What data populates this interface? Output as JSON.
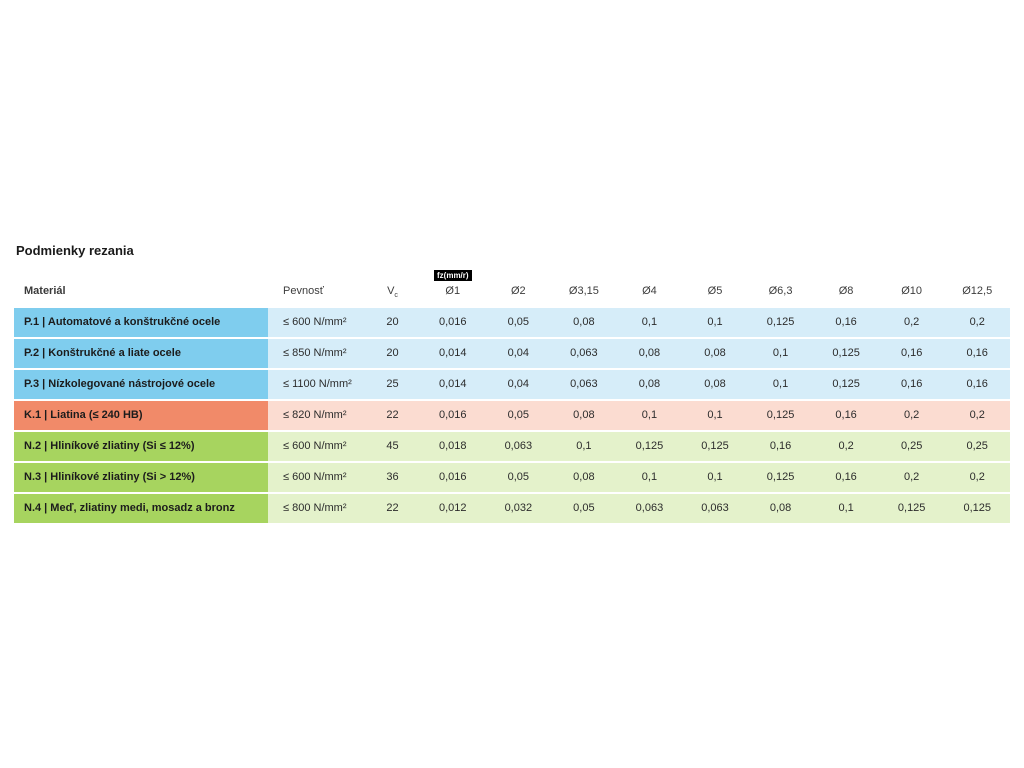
{
  "title": "Podmienky rezania",
  "columns": {
    "material": "Materiál",
    "pevnost": "Pevnosť",
    "vc_main": "V",
    "vc_sub": "c",
    "fz_badge": "fz(mm/r)",
    "diameters": [
      "Ø1",
      "Ø2",
      "Ø3,15",
      "Ø4",
      "Ø5",
      "Ø6,3",
      "Ø8",
      "Ø10",
      "Ø12,5"
    ]
  },
  "table": {
    "colors": {
      "P": {
        "label": "#7fcdee",
        "tint": "#d6edf9"
      },
      "K": {
        "label": "#f18a69",
        "tint": "#fbdcd1"
      },
      "N": {
        "label": "#a7d45f",
        "tint": "#e4f2cb"
      }
    },
    "rows": [
      {
        "group": "P",
        "material": "P.1 | Automatové a konštrukčné ocele",
        "pevnost": "≤ 600 N/mm²",
        "vc": "20",
        "values": [
          "0,016",
          "0,05",
          "0,08",
          "0,1",
          "0,1",
          "0,125",
          "0,16",
          "0,2",
          "0,2"
        ]
      },
      {
        "group": "P",
        "material": "P.2 | Konštrukčné a liate ocele",
        "pevnost": "≤ 850 N/mm²",
        "vc": "20",
        "values": [
          "0,014",
          "0,04",
          "0,063",
          "0,08",
          "0,08",
          "0,1",
          "0,125",
          "0,16",
          "0,16"
        ]
      },
      {
        "group": "P",
        "material": "P.3 | Nízkolegované nástrojové ocele",
        "pevnost": "≤ 1100 N/mm²",
        "vc": "25",
        "values": [
          "0,014",
          "0,04",
          "0,063",
          "0,08",
          "0,08",
          "0,1",
          "0,125",
          "0,16",
          "0,16"
        ]
      },
      {
        "group": "K",
        "material": "K.1 | Liatina (≤ 240 HB)",
        "pevnost": "≤ 820 N/mm²",
        "vc": "22",
        "values": [
          "0,016",
          "0,05",
          "0,08",
          "0,1",
          "0,1",
          "0,125",
          "0,16",
          "0,2",
          "0,2"
        ]
      },
      {
        "group": "N",
        "material": "N.2 | Hliníkové zliatiny (Si ≤ 12%)",
        "pevnost": "≤ 600 N/mm²",
        "vc": "45",
        "values": [
          "0,018",
          "0,063",
          "0,1",
          "0,125",
          "0,125",
          "0,16",
          "0,2",
          "0,25",
          "0,25"
        ]
      },
      {
        "group": "N",
        "material": "N.3 | Hliníkové zliatiny (Si > 12%)",
        "pevnost": "≤ 600 N/mm²",
        "vc": "36",
        "values": [
          "0,016",
          "0,05",
          "0,08",
          "0,1",
          "0,1",
          "0,125",
          "0,16",
          "0,2",
          "0,2"
        ]
      },
      {
        "group": "N",
        "material": "N.4 | Meď, zliatiny medi, mosadz a bronz",
        "pevnost": "≤ 800 N/mm²",
        "vc": "22",
        "values": [
          "0,012",
          "0,032",
          "0,05",
          "0,063",
          "0,063",
          "0,08",
          "0,1",
          "0,125",
          "0,125"
        ]
      }
    ]
  }
}
